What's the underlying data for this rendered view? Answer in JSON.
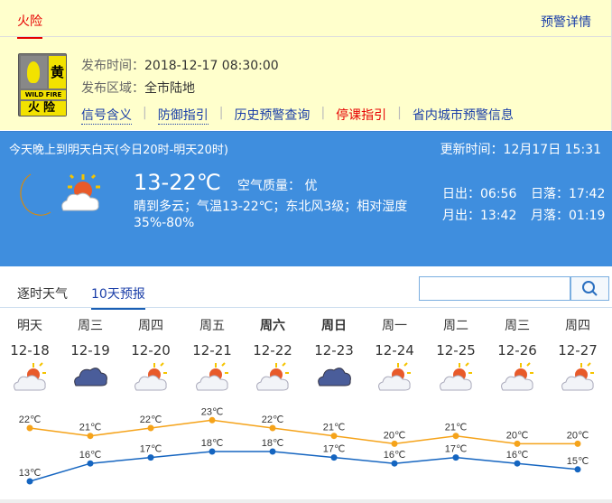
{
  "warning": {
    "tab": "火险",
    "detail_link": "预警详情",
    "badge": {
      "level": "黄",
      "english": "WILD FIRE",
      "type": "火险"
    },
    "publish_time_label": "发布时间：",
    "publish_time": "2018-12-17 08:30:00",
    "area_label": "发布区域：",
    "area": "全市陆地",
    "links": [
      "信号含义",
      "防御指引",
      "历史预警查询",
      "停课指引",
      "省内城市预警信息"
    ]
  },
  "current": {
    "period": "今天晚上到明天白天(今日20时-明天20时)",
    "updated": "更新时间：12月17日 15:31",
    "temp": "13-22℃",
    "air_quality": "空气质量： 优",
    "description": "晴到多云；气温13-22℃；东北风3级；相对湿度35%-80%",
    "sunrise": "日出：06:56",
    "sunset": "日落：17:42",
    "moonrise": "月出：13:42",
    "moonset": "月落：01:19",
    "icons": [
      "moon-icon",
      "partly-cloudy-icon"
    ]
  },
  "tabs": [
    "逐时天气",
    "10天预报"
  ],
  "active_tab": "10天预报",
  "search": {
    "value": "",
    "placeholder": ""
  },
  "forecast": [
    {
      "weekday": "明天",
      "date": "12-18",
      "icon": "partly-cloudy",
      "bold": false
    },
    {
      "weekday": "周三",
      "date": "12-19",
      "icon": "cloudy",
      "bold": false
    },
    {
      "weekday": "周四",
      "date": "12-20",
      "icon": "partly-cloudy",
      "bold": false
    },
    {
      "weekday": "周五",
      "date": "12-21",
      "icon": "partly-cloudy",
      "bold": false
    },
    {
      "weekday": "周六",
      "date": "12-22",
      "icon": "partly-cloudy",
      "bold": true
    },
    {
      "weekday": "周日",
      "date": "12-23",
      "icon": "cloudy",
      "bold": true
    },
    {
      "weekday": "周一",
      "date": "12-24",
      "icon": "partly-cloudy",
      "bold": false
    },
    {
      "weekday": "周二",
      "date": "12-25",
      "icon": "partly-cloudy",
      "bold": false
    },
    {
      "weekday": "周三",
      "date": "12-26",
      "icon": "partly-cloudy",
      "bold": false
    },
    {
      "weekday": "周四",
      "date": "12-27",
      "icon": "partly-cloudy",
      "bold": false
    }
  ],
  "chart_data": {
    "type": "line",
    "categories": [
      "12-18",
      "12-19",
      "12-20",
      "12-21",
      "12-22",
      "12-23",
      "12-24",
      "12-25",
      "12-26",
      "12-27"
    ],
    "series": [
      {
        "values": [
          22,
          21,
          22,
          23,
          22,
          21,
          20,
          21,
          20,
          20
        ],
        "color": "#f5a31a"
      },
      {
        "values": [
          13,
          16,
          17,
          18,
          18,
          17,
          16,
          17,
          16,
          15
        ],
        "color": "#1565c0"
      }
    ],
    "unit": "℃"
  }
}
